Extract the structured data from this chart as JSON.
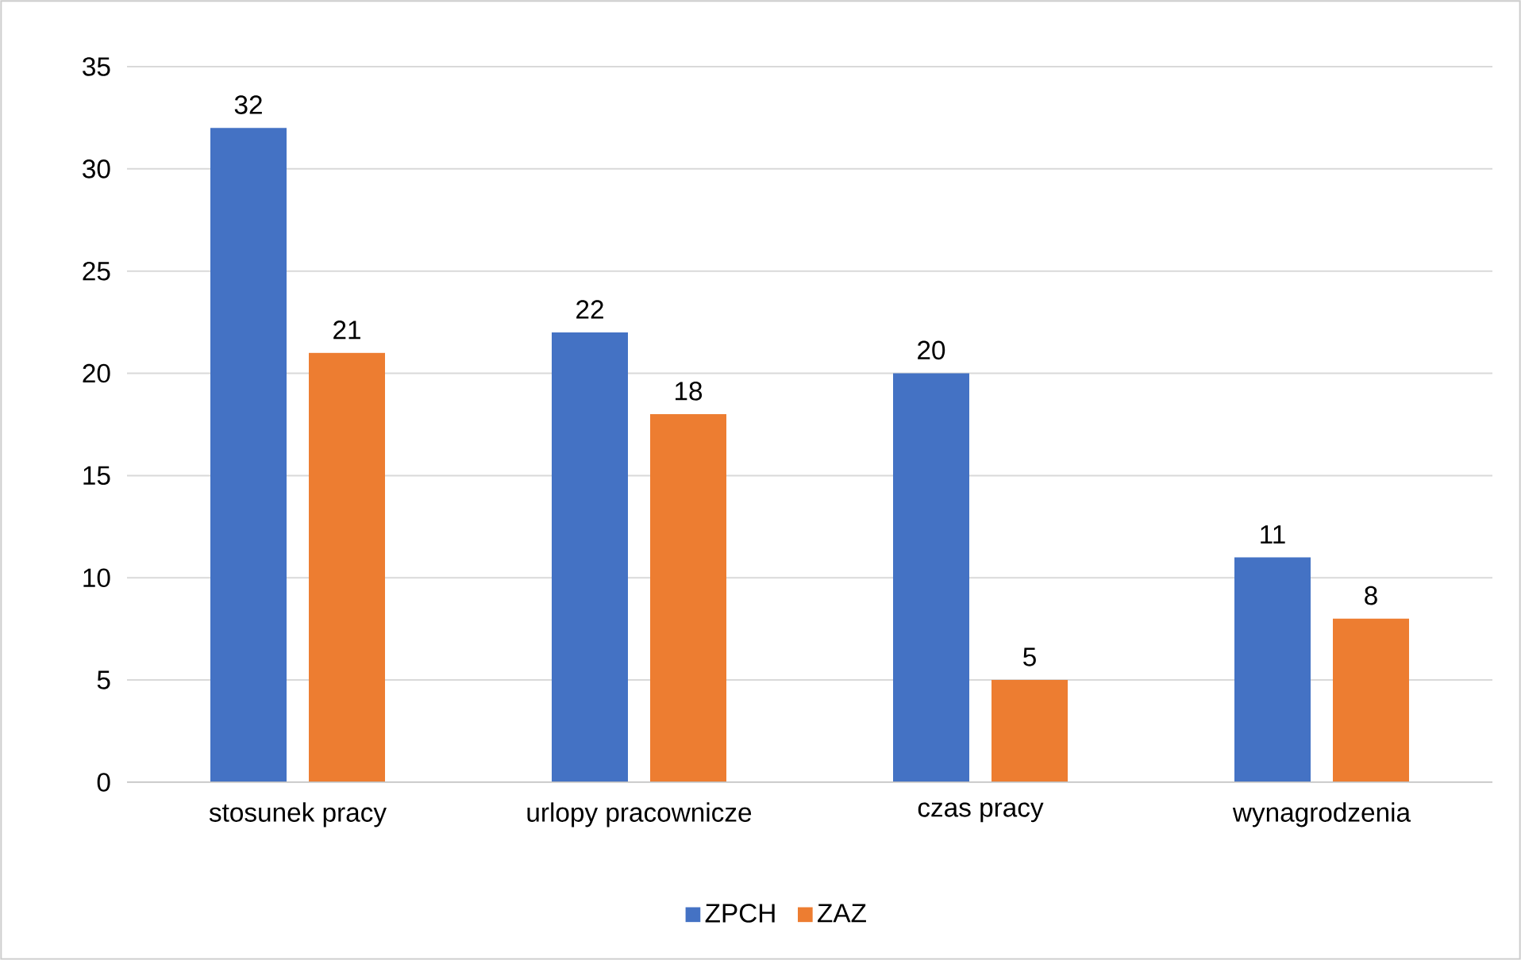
{
  "chart_data": {
    "type": "bar",
    "categories": [
      "stosunek pracy",
      "urlopy pracownicze",
      "czas pracy",
      "wynagrodzenia"
    ],
    "series": [
      {
        "name": "ZPCH",
        "color": "#4472c4",
        "values": [
          32,
          22,
          20,
          11
        ]
      },
      {
        "name": "ZAZ",
        "color": "#ed7d31",
        "values": [
          21,
          18,
          5,
          8
        ]
      }
    ],
    "ylim": [
      0,
      35
    ],
    "yticks": [
      0,
      5,
      10,
      15,
      20,
      25,
      30,
      35
    ],
    "grid": "y",
    "legend": "bottom",
    "data_labels": true
  }
}
